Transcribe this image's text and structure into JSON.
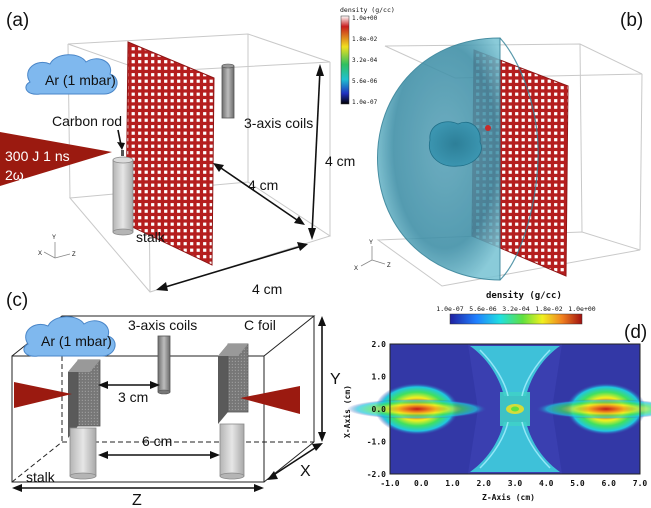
{
  "panels": {
    "a": {
      "tag": "(a)",
      "gas_label": "Ar (1 mbar)",
      "rod_label": "Carbon rod",
      "coils_label": "3-axis coils",
      "laser_label_line1": "300 J 1 ns",
      "laser_label_line2": "2ω",
      "stalk_label": "stalk",
      "dim_diag": "4 cm",
      "dim_vert": "4 cm",
      "dim_bottom": "4 cm",
      "axis_y": "Y",
      "axis_x": "X",
      "axis_z": "Z"
    },
    "b": {
      "tag": "(b)",
      "colorbar_title": "density (g/cc)",
      "colorbar_ticks": [
        "1.0e+00",
        "1.8e-02",
        "3.2e-04",
        "5.6e-06",
        "1.0e-07"
      ],
      "axis_y": "Y",
      "axis_x": "X",
      "axis_z": "Z"
    },
    "c": {
      "tag": "(c)",
      "gas_label": "Ar (1 mbar)",
      "coils_label": "3-axis coils",
      "foil_label": "C foil",
      "dim_foil_coil": "3 cm",
      "dim_stalks": "6 cm",
      "stalk_label": "stalk",
      "axis_y": "Y",
      "axis_x": "X",
      "axis_z": "Z"
    },
    "d": {
      "tag": "(d)",
      "colorbar_title": "density (g/cc)",
      "colorbar_ticks": [
        "1.0e-07",
        "5.6e-06",
        "3.2e-04",
        "1.8e-02",
        "1.0e+00"
      ],
      "x_axis_label": "Z-Axis (cm)",
      "y_axis_label": "X-Axis (cm)",
      "x_ticks": [
        "-1.0",
        "0.0",
        "1.0",
        "2.0",
        "3.0",
        "4.0",
        "5.0",
        "6.0",
        "7.0"
      ],
      "y_ticks": [
        "2.0",
        "1.0",
        "0.0",
        "-1.0",
        "-2.0"
      ]
    }
  },
  "colors": {
    "grid_red": "#b51e1e",
    "laser_red": "#9b1a10",
    "cloud_blue": "#7fb8ee",
    "stalk_grey": "#c8c8c8",
    "foil_grey": "#7a7a7a",
    "sim_dark_blue": "#3a3fb0"
  }
}
